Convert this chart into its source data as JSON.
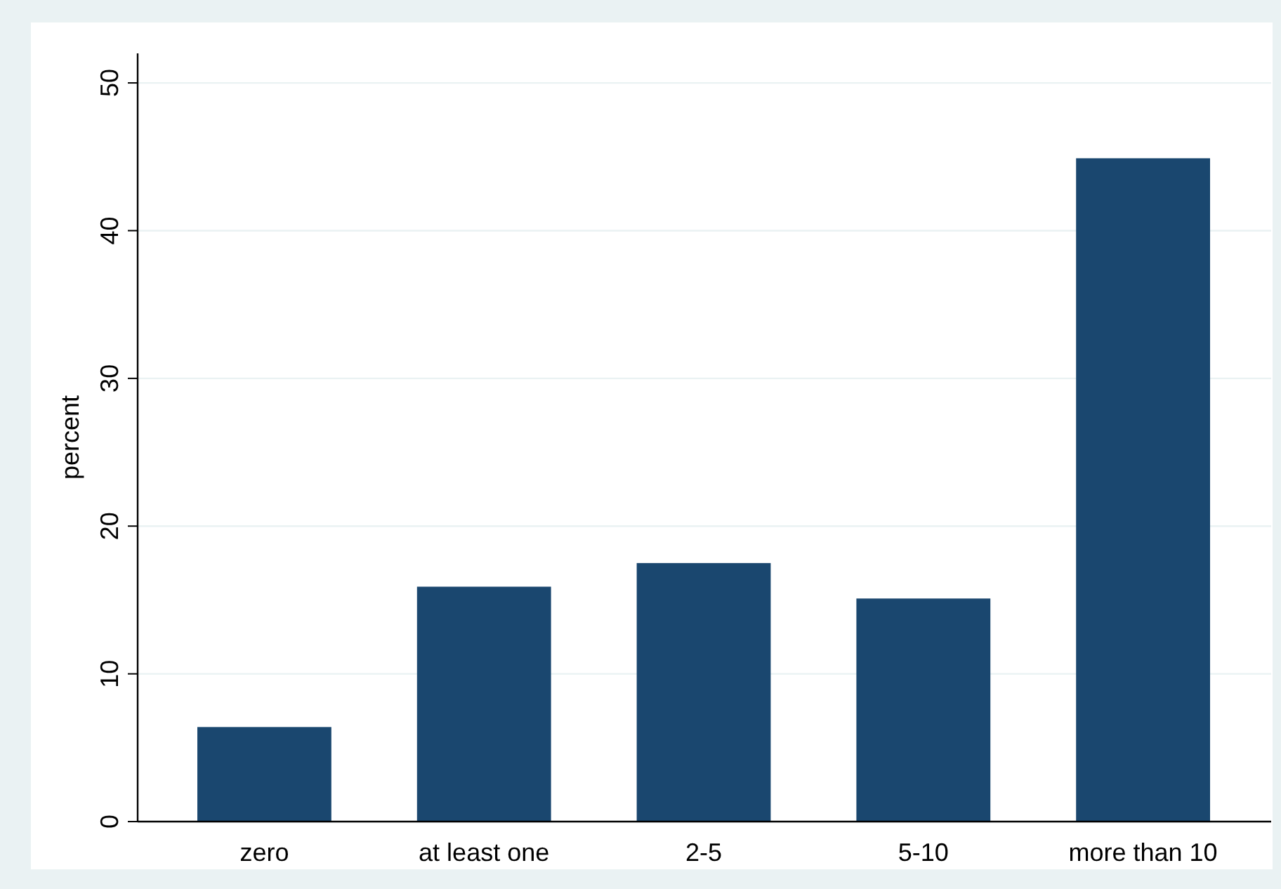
{
  "chart_data": {
    "type": "bar",
    "ylabel": "percent",
    "categories": [
      "zero",
      "at least one",
      "2-5",
      "5-10",
      "more than 10"
    ],
    "values": [
      6.4,
      15.9,
      17.5,
      15.1,
      44.9
    ],
    "color": "#1a476f",
    "ylim": [
      0,
      52
    ],
    "yticks": [
      0,
      10,
      20,
      30,
      40,
      50
    ],
    "grid": "y"
  }
}
